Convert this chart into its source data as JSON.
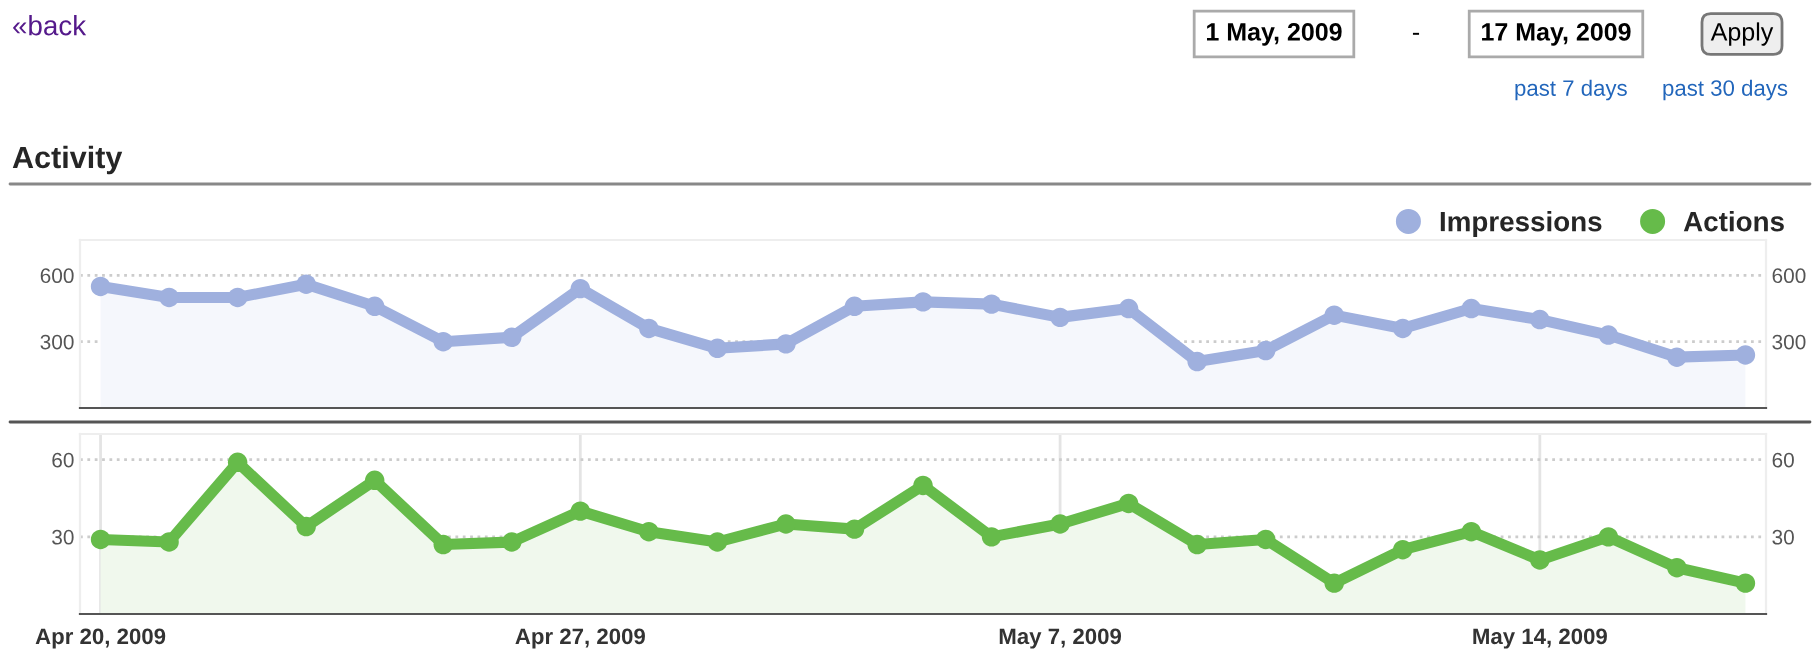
{
  "chart_data": [
    {
      "type": "area",
      "title": "Activity",
      "annotations": [
        "«back",
        "1 May, 2009",
        "-",
        "17 May, 2009",
        "Apply",
        "past 7 days",
        "past 30 days"
      ],
      "categories": [
        null,
        null,
        null,
        null,
        null,
        null,
        null,
        null,
        null,
        null,
        null,
        null,
        null,
        null,
        null,
        null,
        null,
        null,
        null,
        null,
        null,
        null,
        null,
        null,
        null
      ],
      "series": [
        {
          "name": "Impressions",
          "color": "#9fb0de",
          "values": [
            550,
            500,
            500,
            560,
            460,
            300,
            320,
            540,
            360,
            270,
            290,
            460,
            480,
            470,
            410,
            450,
            210,
            260,
            420,
            360,
            450,
            400,
            330,
            230,
            240
          ]
        }
      ],
      "ylim": [
        0,
        760
      ],
      "yticks": [
        300,
        600
      ],
      "y2lim": [
        0,
        760
      ],
      "y2ticks": [
        300,
        600
      ],
      "grid": "y",
      "legend": "top right",
      "marker": "circle",
      "tick_labels": "y"
    },
    {
      "type": "area",
      "categories": [
        "Apr 20, 2009",
        null,
        null,
        null,
        null,
        null,
        null,
        "Apr 27, 2009",
        null,
        null,
        null,
        null,
        null,
        null,
        "May 7, 2009",
        null,
        null,
        null,
        null,
        null,
        null,
        "May 14, 2009",
        null,
        null,
        null
      ],
      "series": [
        {
          "name": "Actions",
          "color": "#66bb4a",
          "values": [
            29,
            28,
            59,
            34,
            52,
            27,
            28,
            40,
            32,
            28,
            35,
            33,
            50,
            30,
            35,
            43,
            27,
            29,
            12,
            25,
            32,
            21,
            30,
            18,
            12
          ]
        }
      ],
      "ylim": [
        0,
        70
      ],
      "yticks": [
        30,
        60
      ],
      "y2lim": [
        0,
        70
      ],
      "y2ticks": [
        30,
        60
      ],
      "grid": true,
      "legend": "top right",
      "marker": "circle"
    }
  ]
}
